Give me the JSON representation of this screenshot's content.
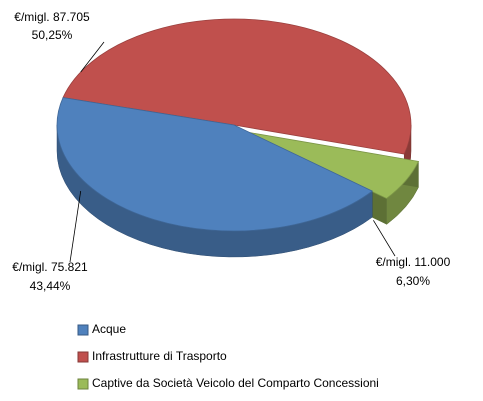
{
  "chart_data": {
    "type": "pie",
    "categories": [
      "Acque",
      "Infrastrutture di Trasporto",
      "Captive da Società Veicolo del Comparto  Concessioni"
    ],
    "values": [
      43.44,
      50.25,
      6.3
    ],
    "value_labels": [
      "43,44%",
      "50,25%",
      "6,30%"
    ],
    "amount_labels": [
      "€/migl. 75.821",
      "€/migl. 87.705",
      "€/migl. 11.000"
    ],
    "colors": [
      "#4f81bd",
      "#c0504d",
      "#9bbb59"
    ],
    "legend": "bottom"
  }
}
